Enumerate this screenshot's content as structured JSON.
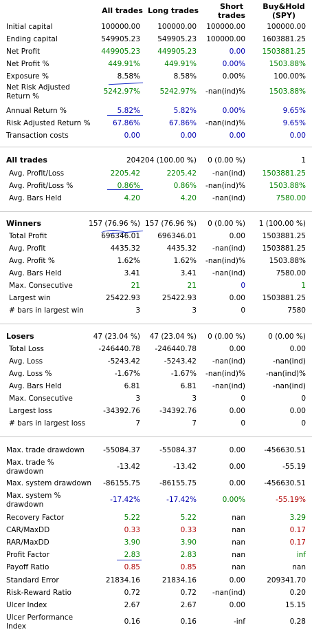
{
  "colors": {
    "pos": "#008000",
    "neg": "#b00000",
    "blue": "#0000b0",
    "text": "#000000"
  },
  "headers": {
    "all": "All trades",
    "long": "Long trades",
    "short": [
      "Short",
      "trades"
    ],
    "bh": [
      "Buy&Hold",
      "(SPY)"
    ]
  },
  "rows": [
    {
      "label": "Initial capital",
      "v": [
        [
          "100000.00",
          "k"
        ],
        [
          "100000.00",
          "k"
        ],
        [
          "100000.00",
          "k"
        ],
        [
          "100000.00",
          "k"
        ]
      ]
    },
    {
      "label": "Ending capital",
      "v": [
        [
          "549905.23",
          "k"
        ],
        [
          "549905.23",
          "k"
        ],
        [
          "100000.00",
          "k"
        ],
        [
          "1603881.25",
          "k"
        ]
      ]
    },
    {
      "label": "Net Profit",
      "v": [
        [
          "449905.23",
          "g"
        ],
        [
          "449905.23",
          "g"
        ],
        [
          "0.00",
          "b"
        ],
        [
          "1503881.25",
          "g"
        ]
      ]
    },
    {
      "label": "Net Profit %",
      "v": [
        [
          "449.91%",
          "g"
        ],
        [
          "449.91%",
          "g"
        ],
        [
          "0.00%",
          "b"
        ],
        [
          "1503.88%",
          "g"
        ]
      ]
    },
    {
      "label": "Exposure %",
      "v": [
        [
          "8.58%",
          "k"
        ],
        [
          "8.58%",
          "k"
        ],
        [
          "0.00%",
          "k"
        ],
        [
          "100.00%",
          "k"
        ]
      ]
    },
    {
      "label": "Net Risk Adjusted Return %",
      "two": true,
      "v": [
        [
          "5242.97%",
          "g"
        ],
        [
          "5242.97%",
          "g"
        ],
        [
          "-nan(ind)%",
          "k"
        ],
        [
          "1503.88%",
          "g"
        ]
      ]
    },
    {
      "label": "Annual Return %",
      "v": [
        [
          "5.82%",
          "b"
        ],
        [
          "5.82%",
          "b"
        ],
        [
          "0.00%",
          "b"
        ],
        [
          "9.65%",
          "b"
        ]
      ]
    },
    {
      "label": "Risk Adjusted Return %",
      "v": [
        [
          "67.86%",
          "b"
        ],
        [
          "67.86%",
          "b"
        ],
        [
          "-nan(ind)%",
          "k"
        ],
        [
          "9.65%",
          "b"
        ]
      ]
    },
    {
      "label": "Transaction costs",
      "v": [
        [
          "0.00",
          "b"
        ],
        [
          "0.00",
          "b"
        ],
        [
          "0.00",
          "b"
        ],
        [
          "0.00",
          "b"
        ]
      ]
    },
    {
      "label": "All trades",
      "section": true,
      "v": [
        [
          "204",
          "k"
        ],
        [
          "204 (100.00 %)",
          "k"
        ],
        [
          "0 (0.00 %)",
          "k"
        ],
        [
          "1",
          "k"
        ]
      ]
    },
    {
      "label": "Avg. Profit/Loss",
      "sub": true,
      "v": [
        [
          "2205.42",
          "g"
        ],
        [
          "2205.42",
          "g"
        ],
        [
          "-nan(ind)",
          "k"
        ],
        [
          "1503881.25",
          "g"
        ]
      ]
    },
    {
      "label": "Avg. Profit/Loss %",
      "sub": true,
      "v": [
        [
          "0.86%",
          "g"
        ],
        [
          "0.86%",
          "g"
        ],
        [
          "-nan(ind)%",
          "k"
        ],
        [
          "1503.88%",
          "g"
        ]
      ]
    },
    {
      "label": "Avg. Bars Held",
      "sub": true,
      "v": [
        [
          "4.20",
          "g"
        ],
        [
          "4.20",
          "g"
        ],
        [
          "-nan(ind)",
          "k"
        ],
        [
          "7580.00",
          "g"
        ]
      ]
    },
    {
      "label": "Winners",
      "section": true,
      "v": [
        [
          "157 (76.96 %)",
          "k"
        ],
        [
          "157 (76.96 %)",
          "k"
        ],
        [
          "0 (0.00 %)",
          "k"
        ],
        [
          "1 (100.00 %)",
          "k"
        ]
      ]
    },
    {
      "label": "Total Profit",
      "sub": true,
      "v": [
        [
          "696346.01",
          "k"
        ],
        [
          "696346.01",
          "k"
        ],
        [
          "0.00",
          "k"
        ],
        [
          "1503881.25",
          "k"
        ]
      ]
    },
    {
      "label": "Avg. Profit",
      "sub": true,
      "v": [
        [
          "4435.32",
          "k"
        ],
        [
          "4435.32",
          "k"
        ],
        [
          "-nan(ind)",
          "k"
        ],
        [
          "1503881.25",
          "k"
        ]
      ]
    },
    {
      "label": "Avg. Profit %",
      "sub": true,
      "v": [
        [
          "1.62%",
          "k"
        ],
        [
          "1.62%",
          "k"
        ],
        [
          "-nan(ind)%",
          "k"
        ],
        [
          "1503.88%",
          "k"
        ]
      ]
    },
    {
      "label": "Avg. Bars Held",
      "sub": true,
      "v": [
        [
          "3.41",
          "k"
        ],
        [
          "3.41",
          "k"
        ],
        [
          "-nan(ind)",
          "k"
        ],
        [
          "7580.00",
          "k"
        ]
      ]
    },
    {
      "label": "Max. Consecutive",
      "sub": true,
      "v": [
        [
          "21",
          "g"
        ],
        [
          "21",
          "g"
        ],
        [
          "0",
          "b"
        ],
        [
          "1",
          "g"
        ]
      ]
    },
    {
      "label": "Largest win",
      "sub": true,
      "v": [
        [
          "25422.93",
          "k"
        ],
        [
          "25422.93",
          "k"
        ],
        [
          "0.00",
          "k"
        ],
        [
          "1503881.25",
          "k"
        ]
      ]
    },
    {
      "label": "# bars in largest win",
      "sub": true,
      "v": [
        [
          "3",
          "k"
        ],
        [
          "3",
          "k"
        ],
        [
          "0",
          "k"
        ],
        [
          "7580",
          "k"
        ]
      ]
    },
    {
      "label": "Losers",
      "section": true,
      "v": [
        [
          "47 (23.04 %)",
          "k"
        ],
        [
          "47 (23.04 %)",
          "k"
        ],
        [
          "0 (0.00 %)",
          "k"
        ],
        [
          "0 (0.00 %)",
          "k"
        ]
      ]
    },
    {
      "label": "Total Loss",
      "sub": true,
      "v": [
        [
          "-246440.78",
          "k"
        ],
        [
          "-246440.78",
          "k"
        ],
        [
          "0.00",
          "k"
        ],
        [
          "0.00",
          "k"
        ]
      ]
    },
    {
      "label": "Avg. Loss",
      "sub": true,
      "v": [
        [
          "-5243.42",
          "k"
        ],
        [
          "-5243.42",
          "k"
        ],
        [
          "-nan(ind)",
          "k"
        ],
        [
          "-nan(ind)",
          "k"
        ]
      ]
    },
    {
      "label": "Avg. Loss %",
      "sub": true,
      "v": [
        [
          "-1.67%",
          "k"
        ],
        [
          "-1.67%",
          "k"
        ],
        [
          "-nan(ind)%",
          "k"
        ],
        [
          "-nan(ind)%",
          "k"
        ]
      ]
    },
    {
      "label": "Avg. Bars Held",
      "sub": true,
      "v": [
        [
          "6.81",
          "k"
        ],
        [
          "6.81",
          "k"
        ],
        [
          "-nan(ind)",
          "k"
        ],
        [
          "-nan(ind)",
          "k"
        ]
      ]
    },
    {
      "label": "Max. Consecutive",
      "sub": true,
      "v": [
        [
          "3",
          "k"
        ],
        [
          "3",
          "k"
        ],
        [
          "0",
          "k"
        ],
        [
          "0",
          "k"
        ]
      ]
    },
    {
      "label": "Largest loss",
      "sub": true,
      "v": [
        [
          "-34392.76",
          "k"
        ],
        [
          "-34392.76",
          "k"
        ],
        [
          "0.00",
          "k"
        ],
        [
          "0.00",
          "k"
        ]
      ]
    },
    {
      "label": "# bars in largest loss",
      "sub": true,
      "v": [
        [
          "7",
          "k"
        ],
        [
          "7",
          "k"
        ],
        [
          "0",
          "k"
        ],
        [
          "0",
          "k"
        ]
      ]
    },
    {
      "label": "Max. trade drawdown",
      "v": [
        [
          "-55084.37",
          "k"
        ],
        [
          "-55084.37",
          "k"
        ],
        [
          "0.00",
          "k"
        ],
        [
          "-456630.51",
          "k"
        ]
      ]
    },
    {
      "label": "Max. trade % drawdown",
      "two": true,
      "v": [
        [
          "-13.42",
          "k"
        ],
        [
          "-13.42",
          "k"
        ],
        [
          "0.00",
          "k"
        ],
        [
          "-55.19",
          "k"
        ]
      ]
    },
    {
      "label": "Max. system drawdown",
      "v": [
        [
          "-86155.75",
          "k"
        ],
        [
          "-86155.75",
          "k"
        ],
        [
          "0.00",
          "k"
        ],
        [
          "-456630.51",
          "k"
        ]
      ]
    },
    {
      "label": "Max. system % drawdown",
      "two": true,
      "v": [
        [
          "-17.42%",
          "b"
        ],
        [
          "-17.42%",
          "b"
        ],
        [
          "0.00%",
          "g"
        ],
        [
          "-55.19%",
          "r"
        ]
      ]
    },
    {
      "label": "Recovery Factor",
      "v": [
        [
          "5.22",
          "g"
        ],
        [
          "5.22",
          "g"
        ],
        [
          "nan",
          "k"
        ],
        [
          "3.29",
          "g"
        ]
      ]
    },
    {
      "label": "CAR/MaxDD",
      "v": [
        [
          "0.33",
          "r"
        ],
        [
          "0.33",
          "r"
        ],
        [
          "nan",
          "k"
        ],
        [
          "0.17",
          "r"
        ]
      ]
    },
    {
      "label": "RAR/MaxDD",
      "v": [
        [
          "3.90",
          "g"
        ],
        [
          "3.90",
          "g"
        ],
        [
          "nan",
          "k"
        ],
        [
          "0.17",
          "r"
        ]
      ]
    },
    {
      "label": "Profit Factor",
      "v": [
        [
          "2.83",
          "g"
        ],
        [
          "2.83",
          "g"
        ],
        [
          "nan",
          "k"
        ],
        [
          "inf",
          "g"
        ]
      ]
    },
    {
      "label": "Payoff Ratio",
      "v": [
        [
          "0.85",
          "r"
        ],
        [
          "0.85",
          "r"
        ],
        [
          "nan",
          "k"
        ],
        [
          "nan",
          "k"
        ]
      ]
    },
    {
      "label": "Standard Error",
      "v": [
        [
          "21834.16",
          "k"
        ],
        [
          "21834.16",
          "k"
        ],
        [
          "0.00",
          "k"
        ],
        [
          "209341.70",
          "k"
        ]
      ]
    },
    {
      "label": "Risk-Reward Ratio",
      "v": [
        [
          "0.72",
          "k"
        ],
        [
          "0.72",
          "k"
        ],
        [
          "-nan(ind)",
          "k"
        ],
        [
          "0.20",
          "k"
        ]
      ]
    },
    {
      "label": "Ulcer Index",
      "v": [
        [
          "2.67",
          "k"
        ],
        [
          "2.67",
          "k"
        ],
        [
          "0.00",
          "k"
        ],
        [
          "15.15",
          "k"
        ]
      ]
    },
    {
      "label": "Ulcer Performance Index",
      "two": true,
      "v": [
        [
          "0.16",
          "k"
        ],
        [
          "0.16",
          "k"
        ],
        [
          "-inf",
          "k"
        ],
        [
          "0.28",
          "k"
        ]
      ]
    }
  ]
}
